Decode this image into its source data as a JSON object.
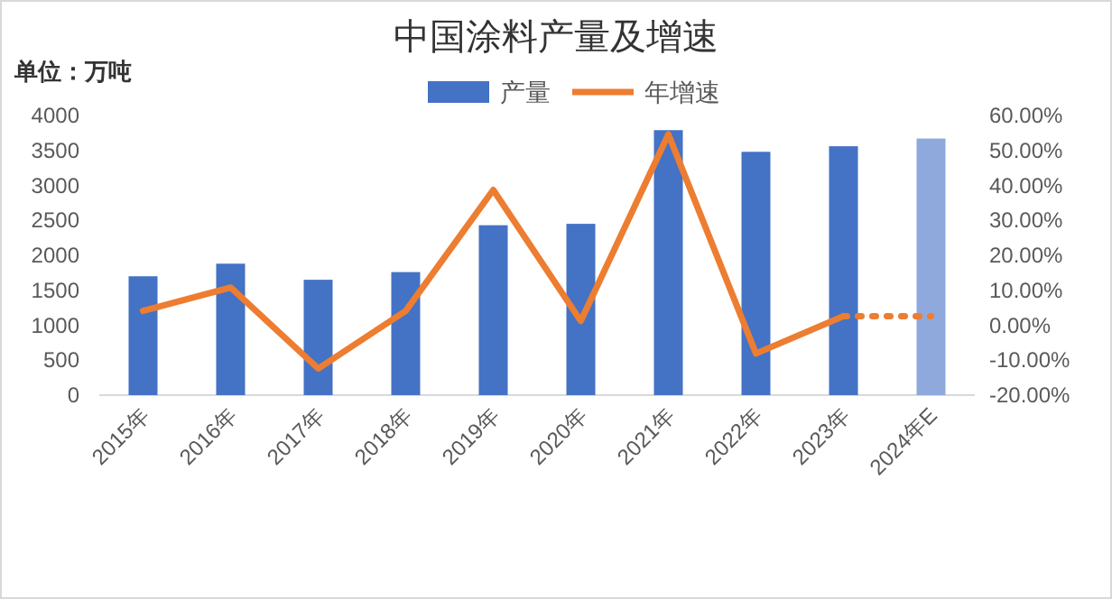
{
  "chart_data": {
    "type": "bar",
    "title": "中国涂料产量及增速",
    "annotations": [
      "单位：万吨"
    ],
    "categories": [
      "2015年",
      "2016年",
      "2017年",
      "2018年",
      "2019年",
      "2020年",
      "2021年",
      "2022年",
      "2023年",
      "2024年E"
    ],
    "series": [
      {
        "name": "产量",
        "colors": [
          "#4472c4",
          "#4472c4",
          "#4472c4",
          "#4472c4",
          "#4472c4",
          "#4472c4",
          "#4472c4",
          "#4472c4",
          "#4472c4",
          "#8fa9dc"
        ],
        "values": [
          1700,
          1880,
          1650,
          1760,
          2430,
          2450,
          3790,
          3480,
          3560,
          3670
        ]
      },
      {
        "name": "年增速",
        "type": "line",
        "axis": "y2",
        "color": "#ed7d31",
        "line_style": "solid",
        "values": [
          4.1,
          10.8,
          -12.4,
          4.1,
          38.7,
          1.2,
          54.6,
          -8.1,
          2.6,
          null
        ]
      },
      {
        "type": "line",
        "axis": "y2",
        "color": "#ed7d31",
        "line_style": "dotted",
        "values": [
          null,
          null,
          null,
          null,
          null,
          null,
          null,
          null,
          2.6,
          2.6
        ]
      }
    ],
    "ylim": [
      0,
      4000
    ],
    "yticks": [
      0,
      500,
      1000,
      1500,
      2000,
      2500,
      3000,
      3500,
      4000
    ],
    "y2lim": [
      -20,
      60
    ],
    "y2ticks": [
      {
        "value": -20,
        "label": "-20.00%"
      },
      {
        "value": -10,
        "label": "-10.00%"
      },
      {
        "value": 0,
        "label": "0.00%"
      },
      {
        "value": 10,
        "label": "10.00%"
      },
      {
        "value": 20,
        "label": "20.00%"
      },
      {
        "value": 30,
        "label": "30.00%"
      },
      {
        "value": 40,
        "label": "40.00%"
      },
      {
        "value": 50,
        "label": "50.00%"
      },
      {
        "value": 60,
        "label": "60.00%"
      }
    ],
    "legend": "top",
    "grid": false
  }
}
